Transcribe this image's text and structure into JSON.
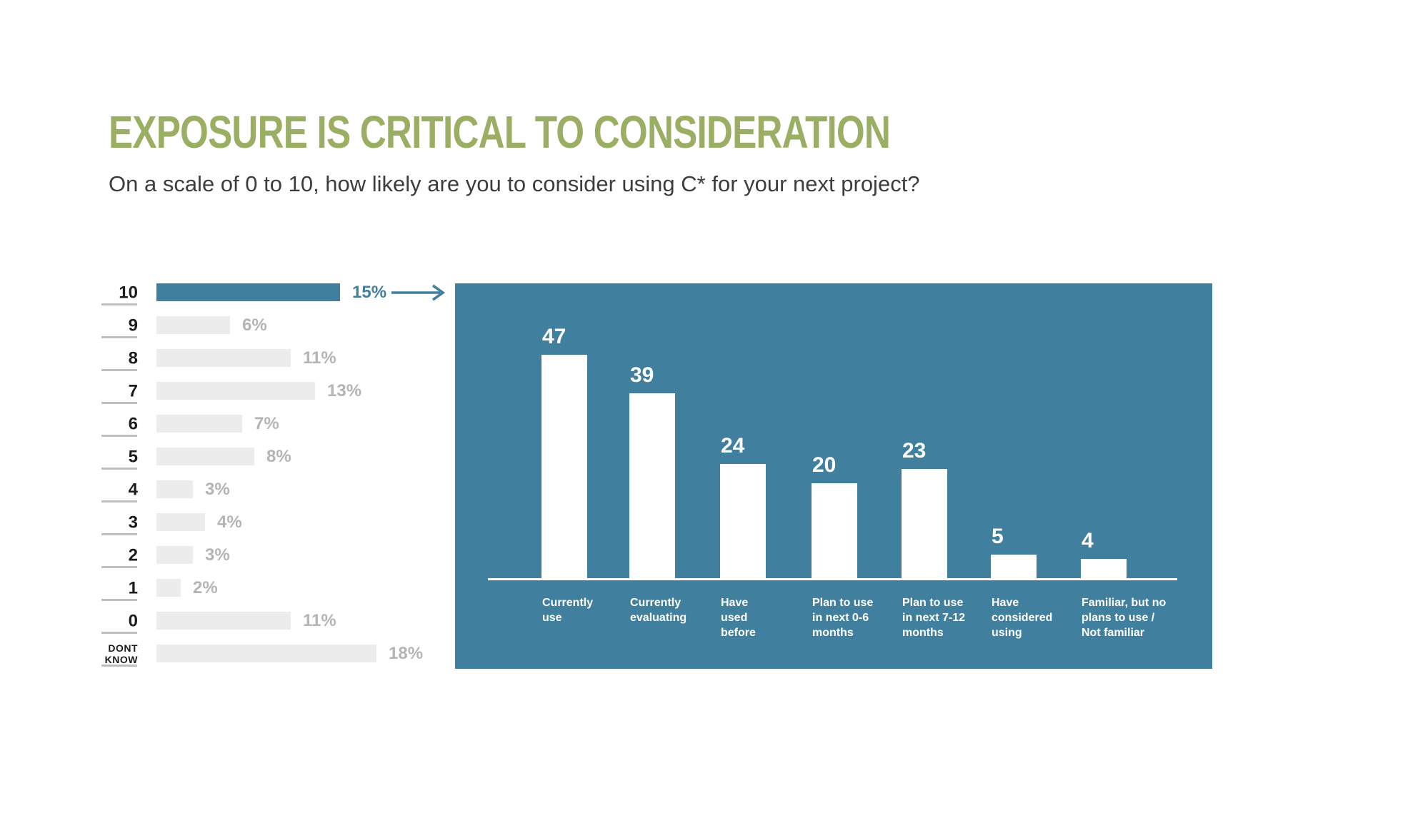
{
  "header": {
    "title": "EXPOSURE IS CRITICAL TO CONSIDERATION",
    "subtitle": "On a scale of 0 to 10, how likely are you to consider using C* for your next project?"
  },
  "colors": {
    "title_green": "#9aaf63",
    "teal": "#417f9e",
    "light_gray_bar": "#ececec",
    "muted_label_gray": "#b4b4b4",
    "dark_label": "#1c1c1c",
    "subtitle_gray": "#3d3d3d",
    "panel_bar_white": "#ffffff"
  },
  "chart_data": [
    {
      "type": "bar",
      "orientation": "horizontal",
      "categories": [
        "10",
        "9",
        "8",
        "7",
        "6",
        "5",
        "4",
        "3",
        "2",
        "1",
        "0",
        "DONT KNOW"
      ],
      "category_display": [
        "10",
        "9",
        "8",
        "7",
        "6",
        "5",
        "4",
        "3",
        "2",
        "1",
        "0",
        "DONT\nKNOW"
      ],
      "values": [
        15,
        6,
        11,
        13,
        7,
        8,
        3,
        4,
        3,
        2,
        11,
        18
      ],
      "unit": "%",
      "value_labels": [
        "15%",
        "6%",
        "11%",
        "13%",
        "7%",
        "8%",
        "3%",
        "4%",
        "3%",
        "2%",
        "11%",
        "18%"
      ],
      "highlight_index": 0,
      "highlight_color": "#417f9e",
      "bar_color": "#ececec",
      "grid": false,
      "legend": "none"
    },
    {
      "type": "bar",
      "orientation": "vertical",
      "categories": [
        "Currently use",
        "Currently evaluating",
        "Have used before",
        "Plan to use in next 0-6 months",
        "Plan to use in next 7-12 months",
        "Have considered using",
        "Familiar, but no plans to use / Not familiar"
      ],
      "category_lines": [
        [
          "Currently",
          "use"
        ],
        [
          "Currently",
          "evaluating"
        ],
        [
          "Have",
          "used",
          "before"
        ],
        [
          "Plan to use",
          "in next 0-6",
          "months"
        ],
        [
          "Plan to use",
          "in next 7-12",
          "months"
        ],
        [
          "Have",
          "considered",
          "using"
        ],
        [
          "Familiar, but no",
          "plans to use /",
          "Not familiar"
        ]
      ],
      "values": [
        47,
        39,
        24,
        20,
        23,
        5,
        4
      ],
      "value_labels": [
        "47",
        "39",
        "24",
        "20",
        "23",
        "5",
        "4"
      ],
      "bar_color": "#ffffff",
      "background_color": "#417f9e",
      "grid": false,
      "legend": "none"
    }
  ],
  "annotations": {
    "highlight_arrow": "arrow from the highlighted 15% bar pointing to the right panel"
  }
}
